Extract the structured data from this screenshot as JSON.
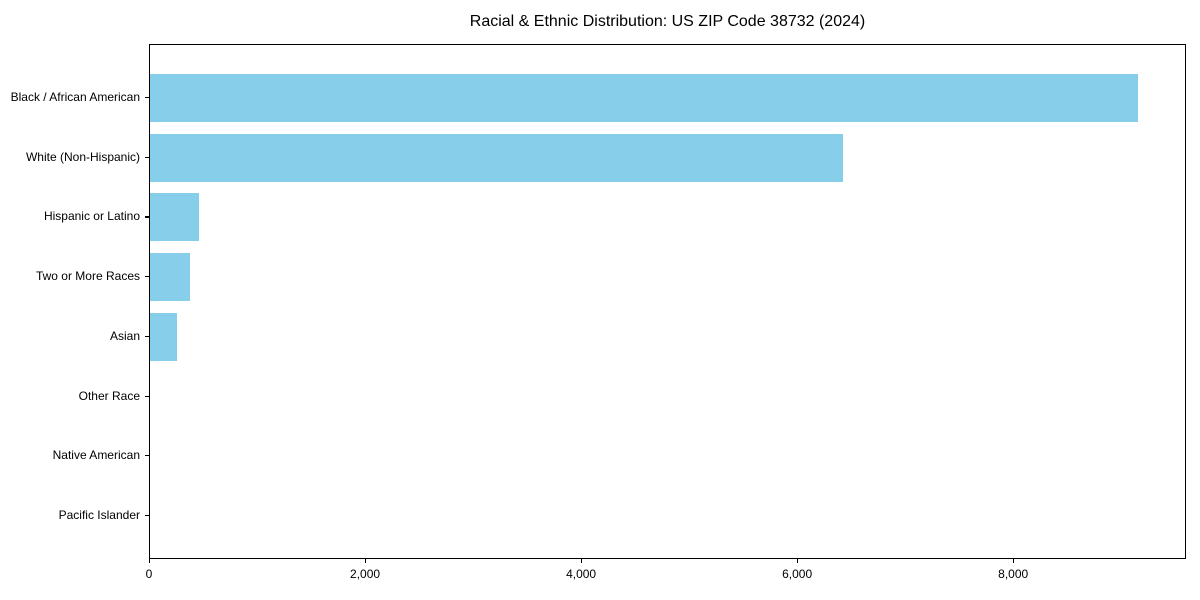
{
  "chart_data": {
    "type": "bar",
    "orientation": "horizontal",
    "title": "Racial & Ethnic Distribution: US ZIP Code 38732 (2024)",
    "categories": [
      "Black / African American",
      "White (Non-Hispanic)",
      "Hispanic or Latino",
      "Two or More Races",
      "Asian",
      "Other Race",
      "Native American",
      "Pacific Islander"
    ],
    "values": [
      9150,
      6420,
      450,
      370,
      250,
      0,
      0,
      0
    ],
    "xlabel": "",
    "ylabel": "",
    "xlim": [
      0,
      9600
    ],
    "xticks": [
      0,
      2000,
      4000,
      6000,
      8000
    ],
    "xtick_labels": [
      "0",
      "2,000",
      "4,000",
      "6,000",
      "8,000"
    ],
    "bar_color": "#87CEEB",
    "background_color": "#FFFFFF",
    "spine_color": "#000000",
    "grid": false,
    "legend": null
  }
}
